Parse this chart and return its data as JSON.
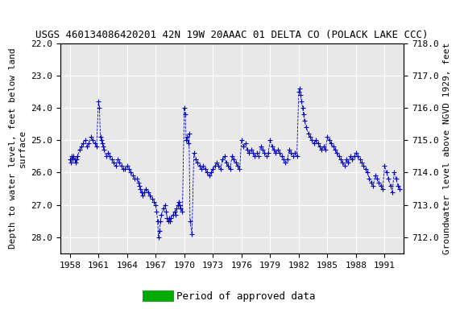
{
  "title": "USGS 460134086420201 42N 19W 20AAAC 01 DELTA CO (POLACK LAKE CCC)",
  "ylabel_left": "Depth to water level, feet below land\nsurface",
  "ylabel_right": "Groundwater level above NGVD 1929, feet",
  "ylim_left": [
    22.0,
    28.5
  ],
  "ylim_right": [
    718.0,
    711.5
  ],
  "yticks_left": [
    22.0,
    23.0,
    24.0,
    25.0,
    26.0,
    27.0,
    28.0
  ],
  "yticks_right": [
    718.0,
    717.0,
    716.0,
    715.0,
    714.0,
    713.0,
    712.0
  ],
  "xticks": [
    1958,
    1961,
    1964,
    1967,
    1970,
    1973,
    1976,
    1979,
    1982,
    1985,
    1988,
    1991
  ],
  "xlim": [
    1957.0,
    1993.0
  ],
  "line_color": "#0000CC",
  "marker": "+",
  "linestyle": "--",
  "background_color": "#ffffff",
  "plot_bg_color": "#e8e8e8",
  "green_bar_color": "#00aa00",
  "title_fontsize": 9,
  "axis_label_fontsize": 8,
  "tick_fontsize": 8,
  "legend_fontsize": 9,
  "data_x": [
    1958.0,
    1958.1,
    1958.2,
    1958.3,
    1958.4,
    1958.5,
    1958.6,
    1958.7,
    1958.8,
    1959.0,
    1959.2,
    1959.4,
    1959.6,
    1959.8,
    1960.0,
    1960.2,
    1960.4,
    1960.6,
    1960.8,
    1961.0,
    1961.1,
    1961.2,
    1961.3,
    1961.4,
    1961.5,
    1961.6,
    1961.8,
    1962.0,
    1962.2,
    1962.4,
    1962.6,
    1962.8,
    1963.0,
    1963.2,
    1963.4,
    1963.6,
    1963.8,
    1964.0,
    1964.2,
    1964.4,
    1964.6,
    1964.8,
    1965.0,
    1965.2,
    1965.3,
    1965.4,
    1965.5,
    1965.6,
    1965.8,
    1966.0,
    1966.2,
    1966.4,
    1966.6,
    1966.8,
    1967.0,
    1967.1,
    1967.2,
    1967.3,
    1967.4,
    1967.5,
    1967.6,
    1967.8,
    1968.0,
    1968.1,
    1968.2,
    1968.3,
    1968.4,
    1968.5,
    1968.6,
    1968.8,
    1969.0,
    1969.1,
    1969.2,
    1969.3,
    1969.4,
    1969.5,
    1969.6,
    1969.8,
    1970.0,
    1970.1,
    1970.2,
    1970.3,
    1970.4,
    1970.5,
    1970.6,
    1970.8,
    1971.0,
    1971.2,
    1971.4,
    1971.6,
    1971.8,
    1972.0,
    1972.2,
    1972.4,
    1972.6,
    1972.8,
    1973.0,
    1973.2,
    1973.4,
    1973.6,
    1973.8,
    1974.0,
    1974.2,
    1974.4,
    1974.6,
    1974.8,
    1975.0,
    1975.2,
    1975.4,
    1975.6,
    1975.8,
    1976.0,
    1976.2,
    1976.4,
    1976.6,
    1976.8,
    1977.0,
    1977.2,
    1977.4,
    1977.6,
    1977.8,
    1978.0,
    1978.2,
    1978.4,
    1978.6,
    1978.8,
    1979.0,
    1979.2,
    1979.4,
    1979.6,
    1979.8,
    1980.0,
    1980.2,
    1980.4,
    1980.6,
    1980.8,
    1981.0,
    1981.2,
    1981.4,
    1981.6,
    1981.8,
    1982.0,
    1982.1,
    1982.2,
    1982.3,
    1982.4,
    1982.5,
    1982.6,
    1982.8,
    1983.0,
    1983.2,
    1983.4,
    1983.6,
    1983.8,
    1984.0,
    1984.2,
    1984.4,
    1984.6,
    1984.8,
    1985.0,
    1985.2,
    1985.4,
    1985.6,
    1985.8,
    1986.0,
    1986.2,
    1986.4,
    1986.6,
    1986.8,
    1987.0,
    1987.2,
    1987.4,
    1987.6,
    1987.8,
    1988.0,
    1988.2,
    1988.4,
    1988.6,
    1988.8,
    1989.0,
    1989.2,
    1989.4,
    1989.6,
    1989.8,
    1990.0,
    1990.2,
    1990.4,
    1990.6,
    1990.8,
    1991.0,
    1991.2,
    1991.4,
    1991.6,
    1991.8,
    1992.0,
    1992.2,
    1992.4,
    1992.6
  ],
  "data_y": [
    25.6,
    25.7,
    25.5,
    25.6,
    25.5,
    25.6,
    25.7,
    25.6,
    25.5,
    25.3,
    25.2,
    25.1,
    25.0,
    25.2,
    25.1,
    24.9,
    25.0,
    25.1,
    25.2,
    23.8,
    24.0,
    24.9,
    25.0,
    25.1,
    25.2,
    25.3,
    25.5,
    25.4,
    25.5,
    25.6,
    25.7,
    25.8,
    25.6,
    25.7,
    25.8,
    25.9,
    25.9,
    25.8,
    25.9,
    26.0,
    26.1,
    26.2,
    26.2,
    26.3,
    26.4,
    26.5,
    26.6,
    26.7,
    26.6,
    26.5,
    26.6,
    26.7,
    26.8,
    26.9,
    27.0,
    27.2,
    27.5,
    28.0,
    27.8,
    27.5,
    27.3,
    27.1,
    27.0,
    27.2,
    27.4,
    27.5,
    27.4,
    27.5,
    27.4,
    27.3,
    27.2,
    27.3,
    27.1,
    27.0,
    26.9,
    27.0,
    27.1,
    27.2,
    24.0,
    24.2,
    25.0,
    24.9,
    25.1,
    24.8,
    27.5,
    27.9,
    25.4,
    25.6,
    25.7,
    25.8,
    25.9,
    25.8,
    25.9,
    26.0,
    26.1,
    26.0,
    25.9,
    25.8,
    25.7,
    25.8,
    25.9,
    25.6,
    25.5,
    25.7,
    25.8,
    25.9,
    25.5,
    25.6,
    25.7,
    25.8,
    25.9,
    25.0,
    25.2,
    25.1,
    25.3,
    25.4,
    25.3,
    25.4,
    25.5,
    25.4,
    25.5,
    25.2,
    25.3,
    25.4,
    25.5,
    25.4,
    25.0,
    25.2,
    25.3,
    25.4,
    25.3,
    25.4,
    25.5,
    25.6,
    25.7,
    25.6,
    25.3,
    25.4,
    25.5,
    25.4,
    25.5,
    23.5,
    23.4,
    23.6,
    23.8,
    24.0,
    24.2,
    24.4,
    24.6,
    24.8,
    24.9,
    25.0,
    25.1,
    25.0,
    25.1,
    25.2,
    25.3,
    25.2,
    25.3,
    24.9,
    25.0,
    25.1,
    25.2,
    25.3,
    25.4,
    25.5,
    25.6,
    25.7,
    25.8,
    25.6,
    25.7,
    25.5,
    25.6,
    25.5,
    25.4,
    25.5,
    25.6,
    25.7,
    25.8,
    25.9,
    26.0,
    26.2,
    26.3,
    26.4,
    26.1,
    26.2,
    26.3,
    26.4,
    26.5,
    25.8,
    26.0,
    26.2,
    26.4,
    26.6,
    26.0,
    26.2,
    26.4,
    26.5
  ]
}
